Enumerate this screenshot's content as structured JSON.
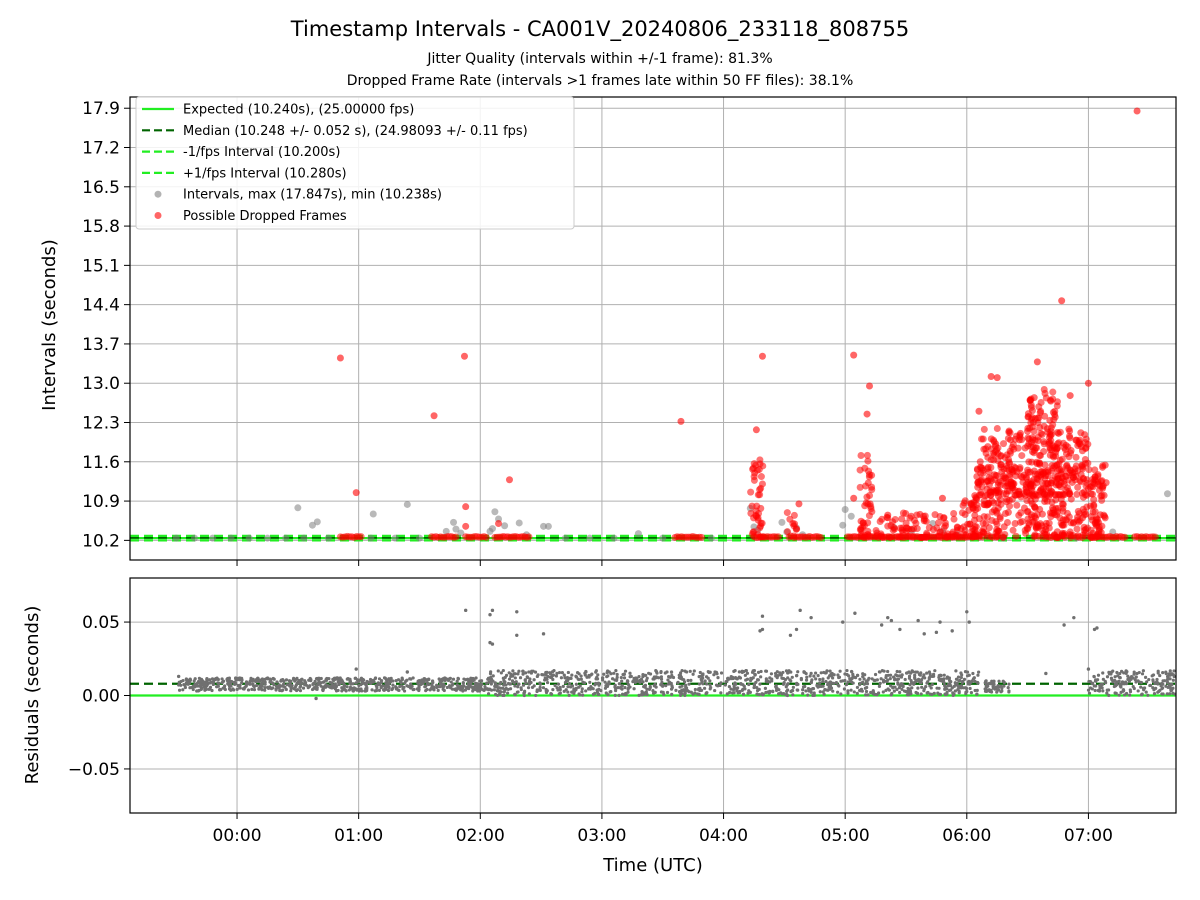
{
  "chart_data": {
    "type": "scatter",
    "title": "Timestamp Intervals - CA001V_20240806_233118_808755",
    "subtitles": [
      "Jitter Quality (intervals within +/-1 frame): 81.3%",
      "Dropped Frame Rate (intervals >1 frames late within 50 FF files): 38.1%"
    ],
    "xlabel": "Time (UTC)",
    "x_unit": "hours relative to 00:00 UTC",
    "xlim": [
      -0.88,
      7.72
    ],
    "x_ticks": [
      {
        "value": 0,
        "label": "00:00"
      },
      {
        "value": 1,
        "label": "01:00"
      },
      {
        "value": 2,
        "label": "02:00"
      },
      {
        "value": 3,
        "label": "03:00"
      },
      {
        "value": 4,
        "label": "04:00"
      },
      {
        "value": 5,
        "label": "05:00"
      },
      {
        "value": 6,
        "label": "06:00"
      },
      {
        "value": 7,
        "label": "07:00"
      }
    ],
    "grid": true,
    "panels": [
      {
        "id": "intervals",
        "ylabel": "Intervals (seconds)",
        "ylim": [
          9.85,
          18.1
        ],
        "y_ticks": [
          {
            "value": 10.2,
            "label": "10.2"
          },
          {
            "value": 10.9,
            "label": "10.9"
          },
          {
            "value": 11.6,
            "label": "11.6"
          },
          {
            "value": 12.3,
            "label": "12.3"
          },
          {
            "value": 13.0,
            "label": "13.0"
          },
          {
            "value": 13.7,
            "label": "13.7"
          },
          {
            "value": 14.4,
            "label": "14.4"
          },
          {
            "value": 15.1,
            "label": "15.1"
          },
          {
            "value": 15.8,
            "label": "15.8"
          },
          {
            "value": 16.5,
            "label": "16.5"
          },
          {
            "value": 17.2,
            "label": "17.2"
          },
          {
            "value": 17.9,
            "label": "17.9"
          }
        ],
        "legend_position": "upper-left",
        "lines": [
          {
            "label": "Expected (10.240s), (25.00000 fps)",
            "y": 10.24,
            "color": "#22ee22",
            "style": "solid"
          },
          {
            "label": "Median (10.248 +/- 0.052 s), (24.98093 +/- 0.11 fps)",
            "y": 10.248,
            "color": "#006400",
            "style": "dashed"
          },
          {
            "label": "-1/fps Interval (10.200s)",
            "y": 10.2,
            "color": "#22ee22",
            "style": "dashed"
          },
          {
            "label": "+1/fps Interval (10.280s)",
            "y": 10.28,
            "color": "#22ee22",
            "style": "dashed"
          }
        ],
        "series": [
          {
            "name": "Intervals, max (17.847s), min (10.238s)",
            "color": "#808080",
            "points": [
              [
                -0.5,
                10.24
              ],
              [
                -0.35,
                10.24
              ],
              [
                -0.2,
                10.24
              ],
              [
                -0.05,
                10.24
              ],
              [
                0.1,
                10.24
              ],
              [
                0.25,
                10.24
              ],
              [
                0.4,
                10.24
              ],
              [
                0.5,
                10.78
              ],
              [
                0.55,
                10.24
              ],
              [
                0.62,
                10.47
              ],
              [
                0.66,
                10.53
              ],
              [
                0.75,
                10.24
              ],
              [
                1.1,
                10.24
              ],
              [
                1.12,
                10.67
              ],
              [
                1.3,
                10.24
              ],
              [
                1.4,
                10.84
              ],
              [
                1.5,
                10.24
              ],
              [
                1.72,
                10.36
              ],
              [
                1.78,
                10.52
              ],
              [
                1.8,
                10.4
              ],
              [
                1.84,
                10.33
              ],
              [
                2.08,
                10.36
              ],
              [
                2.1,
                10.41
              ],
              [
                2.12,
                10.71
              ],
              [
                2.15,
                10.58
              ],
              [
                2.2,
                10.46
              ],
              [
                2.32,
                10.51
              ],
              [
                2.38,
                10.3
              ],
              [
                2.52,
                10.45
              ],
              [
                2.56,
                10.45
              ],
              [
                2.7,
                10.24
              ],
              [
                2.9,
                10.24
              ],
              [
                3.1,
                10.24
              ],
              [
                3.3,
                10.32
              ],
              [
                3.5,
                10.24
              ],
              [
                3.9,
                10.24
              ],
              [
                4.22,
                10.77
              ],
              [
                4.25,
                10.44
              ],
              [
                4.28,
                10.38
              ],
              [
                4.48,
                10.52
              ],
              [
                4.52,
                10.35
              ],
              [
                4.6,
                10.42
              ],
              [
                4.65,
                10.3
              ],
              [
                4.98,
                10.47
              ],
              [
                5.0,
                10.75
              ],
              [
                5.05,
                10.63
              ],
              [
                5.4,
                10.43
              ],
              [
                5.55,
                10.38
              ],
              [
                5.72,
                10.5
              ],
              [
                5.8,
                10.36
              ],
              [
                5.92,
                10.3
              ],
              [
                6.3,
                10.24
              ],
              [
                6.9,
                10.24
              ],
              [
                7.2,
                10.35
              ],
              [
                7.65,
                11.03
              ]
            ]
          },
          {
            "name": "Possible Dropped Frames",
            "color": "#ff0000",
            "points": [
              [
                0.85,
                13.45
              ],
              [
                0.98,
                11.05
              ],
              [
                1.62,
                12.42
              ],
              [
                1.87,
                13.48
              ],
              [
                1.88,
                10.8
              ],
              [
                1.88,
                10.45
              ],
              [
                2.15,
                10.5
              ],
              [
                2.24,
                11.28
              ],
              [
                3.65,
                12.32
              ],
              [
                4.27,
                12.17
              ],
              [
                4.32,
                13.48
              ],
              [
                4.62,
                10.85
              ],
              [
                5.07,
                13.5
              ],
              [
                5.2,
                12.95
              ],
              [
                5.18,
                12.45
              ],
              [
                5.07,
                10.95
              ],
              [
                5.35,
                10.65
              ],
              [
                5.65,
                10.55
              ],
              [
                5.8,
                10.95
              ],
              [
                6.05,
                10.78
              ],
              [
                6.1,
                12.5
              ],
              [
                6.2,
                13.12
              ],
              [
                6.25,
                13.1
              ],
              [
                6.58,
                13.38
              ],
              [
                6.78,
                14.47
              ],
              [
                6.85,
                12.78
              ],
              [
                7.0,
                13.0
              ],
              [
                7.4,
                17.85
              ]
            ],
            "runs_near_10_25": [
              [
                0.85,
                1.02
              ],
              [
                1.6,
                1.8
              ],
              [
                1.88,
                2.05
              ],
              [
                2.12,
                2.4
              ],
              [
                3.6,
                3.82
              ],
              [
                4.25,
                4.45
              ],
              [
                4.58,
                4.8
              ],
              [
                5.02,
                6.1
              ],
              [
                6.65,
                6.75
              ],
              [
                6.9,
                6.95
              ],
              [
                7.02,
                7.3
              ],
              [
                7.38,
                7.55
              ]
            ],
            "clusters": [
              {
                "x": [
                  4.22,
                  4.33
                ],
                "y": [
                  10.25,
                  11.65
                ]
              },
              {
                "x": [
                  4.52,
                  4.62
                ],
                "y": [
                  10.25,
                  10.7
                ]
              },
              {
                "x": [
                  5.12,
                  5.22
                ],
                "y": [
                  10.25,
                  11.75
                ]
              },
              {
                "x": [
                  5.25,
                  5.95
                ],
                "y": [
                  10.25,
                  10.7
                ]
              },
              {
                "x": [
                  5.95,
                  6.08
                ],
                "y": [
                  10.25,
                  11.0
                ]
              },
              {
                "x": [
                  6.05,
                  7.15
                ],
                "y": [
                  10.25,
                  11.6
                ]
              },
              {
                "x": [
                  6.1,
                  7.0
                ],
                "y": [
                  11.0,
                  12.2
                ]
              },
              {
                "x": [
                  6.5,
                  6.75
                ],
                "y": [
                  11.8,
                  12.9
                ]
              }
            ]
          }
        ]
      },
      {
        "id": "residuals",
        "ylabel": "Residuals (seconds)",
        "ylim": [
          -0.08,
          0.08
        ],
        "y_ticks": [
          {
            "value": -0.05,
            "label": "−0.05"
          },
          {
            "value": 0.0,
            "label": "0.00"
          },
          {
            "value": 0.05,
            "label": "0.05"
          }
        ],
        "lines": [
          {
            "y": 0.0,
            "color": "#22ee22",
            "style": "solid"
          },
          {
            "y": 0.008,
            "color": "#006400",
            "style": "dashed"
          }
        ],
        "series": [
          {
            "color": "#707070",
            "bands": [
              {
                "x": [
                  -0.48,
                  2.05
                ],
                "y": [
                  0.003,
                  0.012
                ]
              },
              {
                "x": [
                  2.05,
                  6.1
                ],
                "y": [
                  0.0,
                  0.017
                ]
              },
              {
                "x": [
                  6.15,
                  6.35
                ],
                "y": [
                  0.002,
                  0.01
                ]
              },
              {
                "x": [
                  7.0,
                  7.1
                ],
                "y": [
                  0.0,
                  0.014
                ]
              },
              {
                "x": [
                  7.1,
                  7.72
                ],
                "y": [
                  0.0,
                  0.017
                ]
              }
            ],
            "outliers": [
              [
                -0.48,
                0.013
              ],
              [
                0.65,
                -0.002
              ],
              [
                0.98,
                0.018
              ],
              [
                1.4,
                0.016
              ],
              [
                1.88,
                0.058
              ],
              [
                2.08,
                0.055
              ],
              [
                2.1,
                0.058
              ],
              [
                2.08,
                0.036
              ],
              [
                2.1,
                0.035
              ],
              [
                2.3,
                0.057
              ],
              [
                2.3,
                0.041
              ],
              [
                2.52,
                0.042
              ],
              [
                4.32,
                0.054
              ],
              [
                4.32,
                0.045
              ],
              [
                4.3,
                0.044
              ],
              [
                4.55,
                0.041
              ],
              [
                4.6,
                0.045
              ],
              [
                4.63,
                0.058
              ],
              [
                4.72,
                0.053
              ],
              [
                4.98,
                0.05
              ],
              [
                5.08,
                0.056
              ],
              [
                5.35,
                0.053
              ],
              [
                5.38,
                0.051
              ],
              [
                5.3,
                0.048
              ],
              [
                5.45,
                0.045
              ],
              [
                5.6,
                0.051
              ],
              [
                5.65,
                0.042
              ],
              [
                5.75,
                0.043
              ],
              [
                5.78,
                0.05
              ],
              [
                5.88,
                0.044
              ],
              [
                6.0,
                0.057
              ],
              [
                6.02,
                0.05
              ],
              [
                6.65,
                0.015
              ],
              [
                6.8,
                0.048
              ],
              [
                6.88,
                0.053
              ],
              [
                7.05,
                0.045
              ],
              [
                7.07,
                0.046
              ],
              [
                7.0,
                0.018
              ]
            ]
          }
        ]
      }
    ]
  }
}
